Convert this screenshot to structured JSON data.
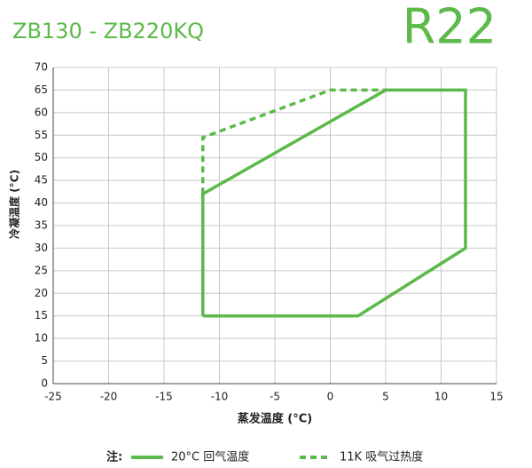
{
  "chart_data": {
    "type": "line",
    "title": "ZB130 - ZB220KQ",
    "subtitle": "R22",
    "xlabel": "蒸发温度 (°C)",
    "ylabel": "冷凝温度 (°C)",
    "legend_title": "注:",
    "xlim": [
      -25,
      15
    ],
    "xticks": [
      -25,
      -20,
      -15,
      -10,
      -5,
      0,
      5,
      10,
      15
    ],
    "ylim": [
      0,
      70
    ],
    "yticks": [
      0,
      5,
      10,
      15,
      20,
      25,
      30,
      35,
      40,
      45,
      50,
      55,
      60,
      65,
      70
    ],
    "grid": true,
    "series": [
      {
        "name": "20°C 回气温度",
        "color": "#5cb94a",
        "line_style": "solid",
        "x": [
          -11.5,
          2.5,
          12.2,
          12.2,
          5,
          -11.5,
          -11.5
        ],
        "values": [
          15,
          15,
          30,
          65,
          65,
          42,
          15
        ]
      },
      {
        "name": "11K 吸气过热度",
        "color": "#5cb94a",
        "line_style": "dashed",
        "x": [
          -11.5,
          -11.5,
          0,
          5
        ],
        "values": [
          42,
          54.5,
          65,
          65
        ]
      }
    ]
  }
}
